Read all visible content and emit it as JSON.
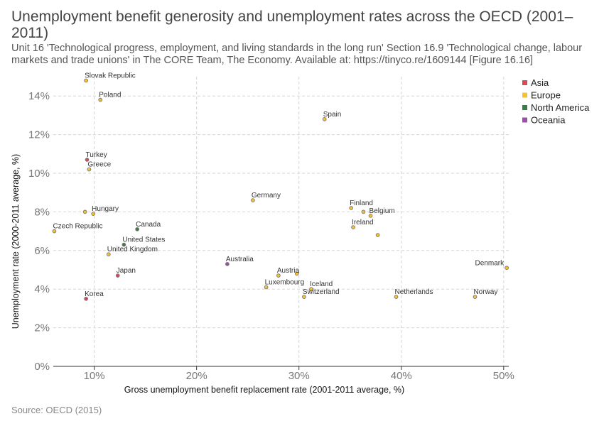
{
  "title": "Unemployment benefit generosity and unemployment rates across the OECD (2001–2011)",
  "subtitle": "Unit 16 'Technological progress, employment, and living standards in the long run' Section 16.9 'Technological change, labour markets and trade unions' in The CORE Team, The Economy. Available at: https://tinyco.re/1609144 [Figure 16.16]",
  "source": "Source: OECD (2015)",
  "colors": {
    "Asia": "#d9475a",
    "Europe": "#f2c232",
    "North America": "#3e7b49",
    "Oceania": "#9b4fa8",
    "point_edge": "#777777",
    "grid": "#d6d6d6"
  },
  "chart_data": {
    "type": "scatter",
    "xlabel": "Gross unemployment benefit replacement rate (2001-2011 average, %)",
    "ylabel": "Unemployment rate (2000-2011 average, %)",
    "xlim": [
      6,
      50.5
    ],
    "ylim": [
      0,
      15
    ],
    "x_ticks": [
      10,
      20,
      30,
      40,
      50
    ],
    "x_tick_labels": [
      "10%",
      "20%",
      "30%",
      "40%",
      "50%"
    ],
    "y_ticks": [
      0,
      2,
      4,
      6,
      8,
      10,
      12,
      14
    ],
    "y_tick_labels": [
      "0%",
      "2%",
      "4%",
      "6%",
      "8%",
      "10%",
      "12%",
      "14%"
    ],
    "grid": true,
    "legend_position": "top-right",
    "series": [
      {
        "name": "Asia",
        "points": [
          {
            "label": "Korea",
            "x": 9.2,
            "y": 3.5
          },
          {
            "label": "Japan",
            "x": 12.3,
            "y": 4.7
          },
          {
            "label": "Turkey",
            "x": 9.3,
            "y": 10.7
          }
        ]
      },
      {
        "name": "Europe",
        "points": [
          {
            "label": "Slovak Republic",
            "x": 9.2,
            "y": 14.8
          },
          {
            "label": "Poland",
            "x": 10.6,
            "y": 13.8
          },
          {
            "label": "Greece",
            "x": 9.5,
            "y": 10.2
          },
          {
            "label": "Hungary",
            "x": 9.9,
            "y": 7.9
          },
          {
            "label": "Czech Republic",
            "x": 6.1,
            "y": 7.0
          },
          {
            "label": "United Kingdom",
            "x": 11.4,
            "y": 5.8
          },
          {
            "label": "Germany",
            "x": 25.5,
            "y": 8.6
          },
          {
            "label": "Spain",
            "x": 32.5,
            "y": 12.8
          },
          {
            "label": "Finland",
            "x": 35.1,
            "y": 8.2
          },
          {
            "label": "Belgium",
            "x": 37.0,
            "y": 7.8
          },
          {
            "label": "Ireland",
            "x": 35.3,
            "y": 7.2
          },
          {
            "label": "Austria",
            "x": 28.0,
            "y": 4.7
          },
          {
            "label": "Luxembourg",
            "x": 26.8,
            "y": 4.1
          },
          {
            "label": "Iceland",
            "x": 31.2,
            "y": 4.0
          },
          {
            "label": "Switzerland",
            "x": 30.5,
            "y": 3.6
          },
          {
            "label": "Netherlands",
            "x": 39.5,
            "y": 3.6
          },
          {
            "label": "Norway",
            "x": 47.2,
            "y": 3.6
          },
          {
            "label": "Denmark",
            "x": 50.3,
            "y": 5.1
          },
          {
            "label": "",
            "x": 9.1,
            "y": 8.0
          },
          {
            "label": "",
            "x": 36.3,
            "y": 8.0
          },
          {
            "label": "",
            "x": 37.7,
            "y": 6.8
          },
          {
            "label": "",
            "x": 29.8,
            "y": 4.8
          }
        ]
      },
      {
        "name": "North America",
        "points": [
          {
            "label": "Canada",
            "x": 14.2,
            "y": 7.1
          },
          {
            "label": "United States",
            "x": 12.9,
            "y": 6.3
          }
        ]
      },
      {
        "name": "Oceania",
        "points": [
          {
            "label": "Australia",
            "x": 23.0,
            "y": 5.3
          }
        ]
      }
    ]
  }
}
